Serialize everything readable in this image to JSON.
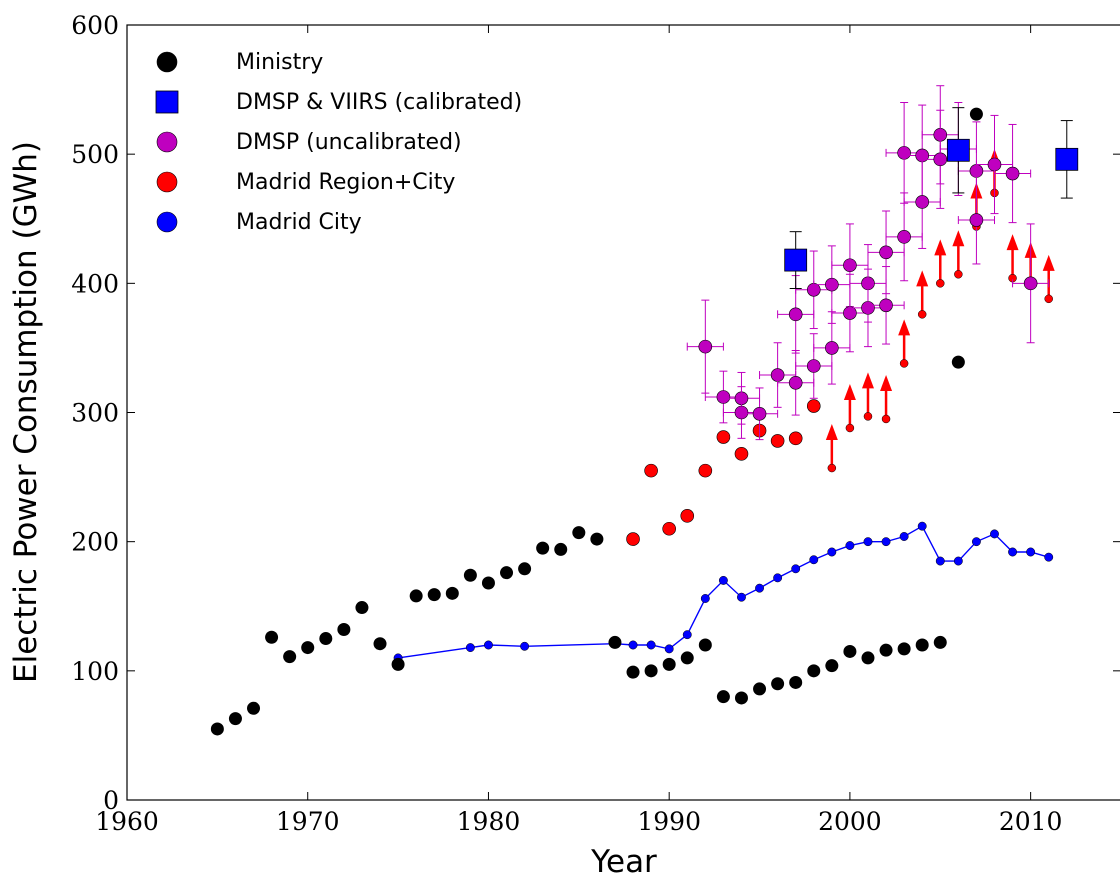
{
  "chart_data": {
    "type": "scatter",
    "title": "",
    "xlabel": "Year",
    "ylabel": "Electric Power Consumption (GWh)",
    "xlim": [
      1960,
      2015
    ],
    "ylim": [
      0,
      600
    ],
    "xticks": [
      1960,
      1970,
      1980,
      1990,
      2000,
      2010
    ],
    "yticks": [
      0,
      100,
      200,
      300,
      400,
      500,
      600
    ],
    "grid": false,
    "legend_position": "top-left",
    "series": [
      {
        "name": "Ministry",
        "marker": "circle",
        "color": "#000000",
        "points": [
          [
            1965,
            55
          ],
          [
            1966,
            63
          ],
          [
            1967,
            71
          ],
          [
            1968,
            126
          ],
          [
            1969,
            111
          ],
          [
            1970,
            118
          ],
          [
            1971,
            125
          ],
          [
            1972,
            132
          ],
          [
            1973,
            149
          ],
          [
            1974,
            121
          ],
          [
            1975,
            105
          ],
          [
            1976,
            158
          ],
          [
            1977,
            159
          ],
          [
            1978,
            160
          ],
          [
            1979,
            174
          ],
          [
            1980,
            168
          ],
          [
            1981,
            176
          ],
          [
            1982,
            179
          ],
          [
            1983,
            195
          ],
          [
            1984,
            194
          ],
          [
            1985,
            207
          ],
          [
            1986,
            202
          ],
          [
            1987,
            122
          ],
          [
            1988,
            99
          ],
          [
            1989,
            100
          ],
          [
            1990,
            105
          ],
          [
            1991,
            110
          ],
          [
            1992,
            120
          ],
          [
            1993,
            80
          ],
          [
            1994,
            79
          ],
          [
            1995,
            86
          ],
          [
            1996,
            90
          ],
          [
            1997,
            91
          ],
          [
            1998,
            100
          ],
          [
            1999,
            104
          ],
          [
            2000,
            115
          ],
          [
            2001,
            110
          ],
          [
            2002,
            116
          ],
          [
            2003,
            117
          ],
          [
            2004,
            120
          ],
          [
            2005,
            122
          ],
          [
            2006,
            339
          ],
          [
            2007,
            531
          ]
        ]
      },
      {
        "name": "DMSP & VIIRS (calibrated)",
        "marker": "square",
        "color": "#0000ff",
        "points": [
          {
            "x": 1997,
            "y": 418,
            "yerr": 22
          },
          {
            "x": 2006,
            "y": 503,
            "yerr": 33
          },
          {
            "x": 2012,
            "y": 496,
            "yerr": 30
          }
        ]
      },
      {
        "name": "DMSP (uncalibrated)",
        "marker": "circle",
        "color": "#bf00bf",
        "points": [
          {
            "x": 1992,
            "y": 351,
            "xerr": 1,
            "yerr": 36
          },
          {
            "x": 1993,
            "y": 312,
            "xerr": 1,
            "yerr": 20
          },
          {
            "x": 1994,
            "y": 311,
            "xerr": 1,
            "yerr": 20
          },
          {
            "x": 1994,
            "y": 300,
            "xerr": 1,
            "yerr": 20
          },
          {
            "x": 1995,
            "y": 299,
            "xerr": 1,
            "yerr": 20
          },
          {
            "x": 1996,
            "y": 329,
            "xerr": 1,
            "yerr": 25
          },
          {
            "x": 1997,
            "y": 376,
            "xerr": 1,
            "yerr": 30
          },
          {
            "x": 1997,
            "y": 323,
            "xerr": 1,
            "yerr": 25
          },
          {
            "x": 1998,
            "y": 395,
            "xerr": 1,
            "yerr": 30
          },
          {
            "x": 1998,
            "y": 336,
            "xerr": 1,
            "yerr": 25
          },
          {
            "x": 1999,
            "y": 399,
            "xerr": 1,
            "yerr": 30
          },
          {
            "x": 1999,
            "y": 350,
            "xerr": 1,
            "yerr": 28
          },
          {
            "x": 2000,
            "y": 414,
            "xerr": 1,
            "yerr": 32
          },
          {
            "x": 2000,
            "y": 377,
            "xerr": 1,
            "yerr": 30
          },
          {
            "x": 2001,
            "y": 400,
            "xerr": 1,
            "yerr": 30
          },
          {
            "x": 2001,
            "y": 381,
            "xerr": 1,
            "yerr": 30
          },
          {
            "x": 2002,
            "y": 424,
            "xerr": 1,
            "yerr": 32
          },
          {
            "x": 2002,
            "y": 383,
            "xerr": 1,
            "yerr": 30
          },
          {
            "x": 2003,
            "y": 501,
            "xerr": 1,
            "yerr": 39
          },
          {
            "x": 2003,
            "y": 436,
            "xerr": 1,
            "yerr": 34
          },
          {
            "x": 2004,
            "y": 499,
            "xerr": 1,
            "yerr": 39
          },
          {
            "x": 2004,
            "y": 463,
            "xerr": 1,
            "yerr": 36
          },
          {
            "x": 2005,
            "y": 515,
            "xerr": 1,
            "yerr": 38
          },
          {
            "x": 2005,
            "y": 496,
            "xerr": 1,
            "yerr": 38
          },
          {
            "x": 2006,
            "y": 504,
            "xerr": 1,
            "yerr": 36
          },
          {
            "x": 2007,
            "y": 487,
            "xerr": 1,
            "yerr": 38
          },
          {
            "x": 2007,
            "y": 449,
            "xerr": 1,
            "yerr": 34
          },
          {
            "x": 2008,
            "y": 492,
            "xerr": 1,
            "yerr": 38
          },
          {
            "x": 2009,
            "y": 485,
            "xerr": 1,
            "yerr": 38
          },
          {
            "x": 2010,
            "y": 400,
            "xerr": 1,
            "yerr": 46
          }
        ]
      },
      {
        "name": "Madrid Region+City",
        "marker": "circle",
        "color": "#ff0000",
        "points": [
          [
            1988,
            202
          ],
          [
            1989,
            255
          ],
          [
            1990,
            210
          ],
          [
            1991,
            220
          ],
          [
            1992,
            255
          ],
          [
            1993,
            281
          ],
          [
            1994,
            268
          ],
          [
            1995,
            286
          ],
          [
            1996,
            278
          ],
          [
            1997,
            280
          ],
          [
            1998,
            305
          ]
        ],
        "lower_limits": [
          [
            1999,
            257
          ],
          [
            2000,
            288
          ],
          [
            2001,
            297
          ],
          [
            2002,
            295
          ],
          [
            2003,
            338
          ],
          [
            2004,
            376
          ],
          [
            2005,
            400
          ],
          [
            2006,
            407
          ],
          [
            2007,
            444
          ],
          [
            2008,
            470
          ],
          [
            2009,
            404
          ],
          [
            2010,
            398
          ],
          [
            2011,
            388
          ]
        ]
      },
      {
        "name": "Madrid City",
        "marker": "circle",
        "color": "#0000ff",
        "line": true,
        "points": [
          [
            1975,
            110
          ],
          [
            1979,
            118
          ],
          [
            1980,
            120
          ],
          [
            1982,
            119
          ],
          [
            1987,
            121
          ],
          [
            1988,
            120
          ],
          [
            1989,
            120
          ],
          [
            1990,
            117
          ],
          [
            1991,
            128
          ],
          [
            1992,
            156
          ],
          [
            1993,
            170
          ],
          [
            1994,
            157
          ],
          [
            1995,
            164
          ],
          [
            1996,
            172
          ],
          [
            1997,
            179
          ],
          [
            1998,
            186
          ],
          [
            1999,
            192
          ],
          [
            2000,
            197
          ],
          [
            2001,
            200
          ],
          [
            2002,
            200
          ],
          [
            2003,
            204
          ],
          [
            2004,
            212
          ],
          [
            2005,
            185
          ],
          [
            2006,
            185
          ],
          [
            2007,
            200
          ],
          [
            2008,
            206
          ],
          [
            2009,
            192
          ],
          [
            2010,
            192
          ],
          [
            2011,
            188
          ]
        ]
      }
    ]
  }
}
